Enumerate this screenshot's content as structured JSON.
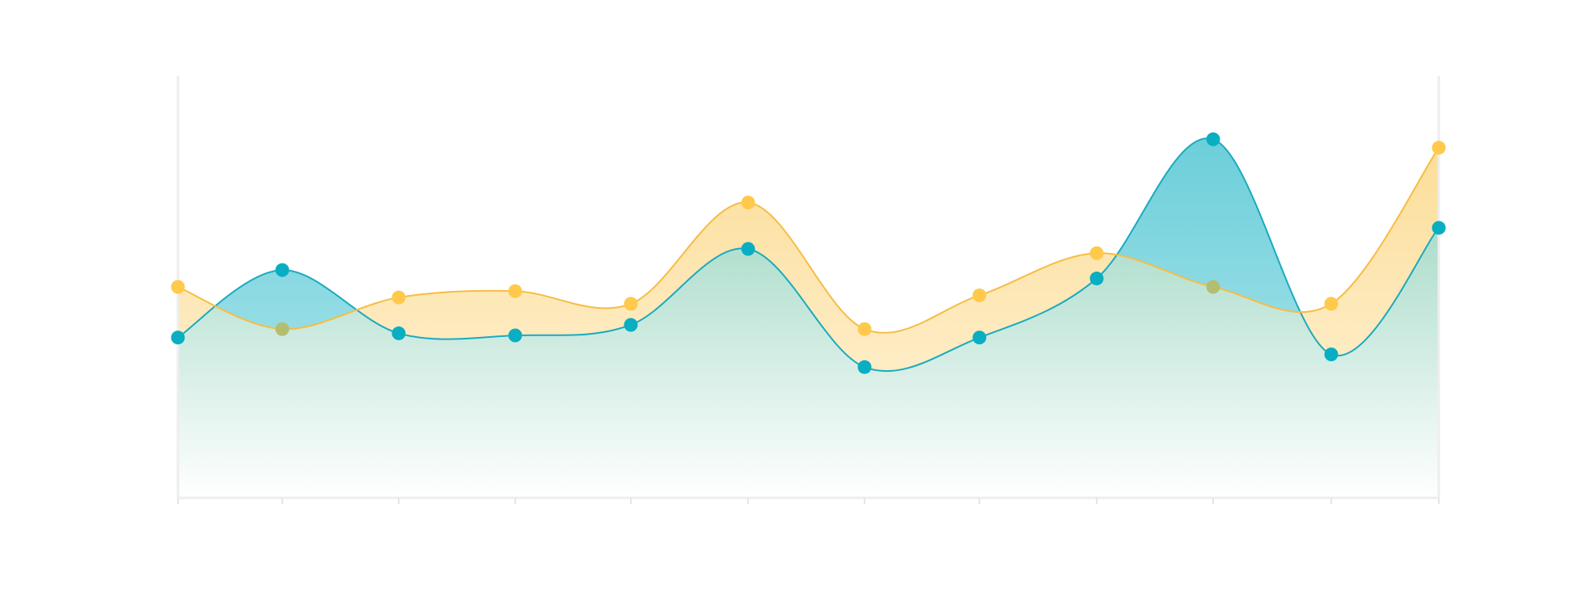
{
  "chart_data": {
    "type": "area",
    "title": "",
    "xlabel": "",
    "ylabel": "",
    "categories": [
      "",
      "",
      "",
      "",
      "",
      "",
      "",
      "",
      "",
      "",
      "",
      ""
    ],
    "x": [
      0,
      1,
      2,
      3,
      4,
      5,
      6,
      7,
      8,
      9,
      10,
      11
    ],
    "ylim": [
      0,
      100
    ],
    "grid": false,
    "legend": "none",
    "series": [
      {
        "values": [
          50,
          40,
          47.5,
          49,
          46,
          70,
          40,
          48,
          58,
          50,
          46,
          83
        ],
        "line_color": "#f6bd42",
        "dot_color": "#ffc94c",
        "fill_top": "#fbd98a",
        "fill_bottom": "#fff5e0"
      },
      {
        "values": [
          38,
          54,
          39,
          38.5,
          41,
          59,
          31,
          38,
          52,
          85,
          34,
          64
        ],
        "line_color": "#1aaabf",
        "dot_color": "#0aaec2",
        "fill_top": "#5ecad6",
        "fill_bottom": "#b9e9ef"
      }
    ],
    "overlap_fill_top": "#7cc9ad",
    "overlap_fill_bottom": "#ffffff",
    "overlap_dot_color": "#b3be72"
  }
}
